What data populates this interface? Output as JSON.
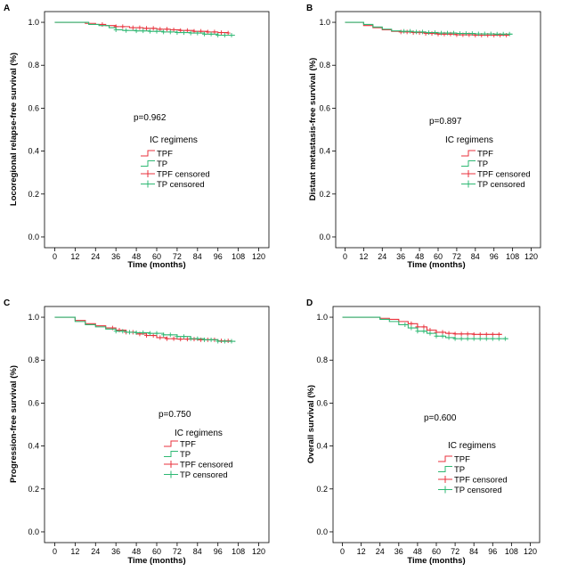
{
  "chart_data": [
    {
      "panel": "A",
      "type": "line",
      "title": "",
      "xlabel": "Time (months)",
      "ylabel": "Locoregional relapse-free survival (%)",
      "xticks": [
        "0",
        "12",
        "24",
        "36",
        "48",
        "60",
        "72",
        "84",
        "96",
        "108",
        "120"
      ],
      "yticks": [
        "0.0",
        "0.2",
        "0.4",
        "0.6",
        "0.8",
        "1.0"
      ],
      "xlim": [
        -6,
        126
      ],
      "ylim": [
        -0.05,
        1.05
      ],
      "pvalue": "p=0.962",
      "legend_title": "IC regimens",
      "legend": [
        "TPF",
        "TP",
        "TPF censored",
        "TP censored"
      ],
      "series": [
        {
          "name": "TPF",
          "color": "#e8323c",
          "x": [
            0,
            10,
            18,
            24,
            30,
            36,
            44,
            52,
            60,
            68,
            74,
            82,
            90,
            96,
            102
          ],
          "y": [
            1.0,
            1.0,
            0.995,
            0.99,
            0.985,
            0.98,
            0.975,
            0.972,
            0.968,
            0.965,
            0.962,
            0.958,
            0.955,
            0.952,
            0.95
          ],
          "censored_x": [
            28,
            36,
            40,
            46,
            50,
            54,
            58,
            62,
            66,
            70,
            74,
            78,
            82,
            86,
            90,
            94,
            98,
            102
          ]
        },
        {
          "name": "TP",
          "color": "#2eb873",
          "x": [
            0,
            12,
            20,
            26,
            32,
            36,
            40,
            48,
            56,
            64,
            72,
            80,
            88,
            96,
            106
          ],
          "y": [
            1.0,
            1.0,
            0.99,
            0.985,
            0.975,
            0.965,
            0.962,
            0.96,
            0.958,
            0.955,
            0.952,
            0.95,
            0.945,
            0.94,
            0.94
          ],
          "censored_x": [
            36,
            42,
            48,
            52,
            56,
            60,
            64,
            68,
            72,
            76,
            80,
            84,
            88,
            92,
            96,
            100,
            104
          ]
        }
      ]
    },
    {
      "panel": "B",
      "type": "line",
      "title": "",
      "xlabel": "Time (months)",
      "ylabel": "Distant metastasis-free survival (%)",
      "xticks": [
        "0",
        "12",
        "24",
        "36",
        "48",
        "60",
        "72",
        "84",
        "96",
        "108",
        "120"
      ],
      "yticks": [
        "0.0",
        "0.2",
        "0.4",
        "0.6",
        "0.8",
        "1.0"
      ],
      "xlim": [
        -6,
        126
      ],
      "ylim": [
        -0.05,
        1.05
      ],
      "pvalue": "p=0.897",
      "legend_title": "IC regimens",
      "legend": [
        "TPF",
        "TP",
        "TPF censored",
        "TP censored"
      ],
      "series": [
        {
          "name": "TPF",
          "color": "#e8323c",
          "x": [
            0,
            6,
            12,
            18,
            24,
            30,
            36,
            44,
            52,
            60,
            72,
            84,
            96,
            106
          ],
          "y": [
            1.0,
            1.0,
            0.985,
            0.975,
            0.965,
            0.958,
            0.955,
            0.952,
            0.948,
            0.945,
            0.942,
            0.94,
            0.94,
            0.94
          ],
          "censored_x": [
            36,
            40,
            44,
            48,
            52,
            56,
            60,
            64,
            68,
            72,
            76,
            80,
            84,
            88,
            92,
            96,
            100,
            104
          ]
        },
        {
          "name": "TP",
          "color": "#2eb873",
          "x": [
            0,
            6,
            12,
            18,
            24,
            30,
            36,
            44,
            52,
            60,
            72,
            84,
            96,
            108
          ],
          "y": [
            1.0,
            1.0,
            0.99,
            0.978,
            0.968,
            0.96,
            0.958,
            0.955,
            0.952,
            0.95,
            0.948,
            0.946,
            0.945,
            0.945
          ],
          "censored_x": [
            38,
            42,
            46,
            50,
            54,
            58,
            62,
            66,
            70,
            74,
            78,
            82,
            86,
            90,
            94,
            98,
            102,
            106
          ]
        }
      ]
    },
    {
      "panel": "C",
      "type": "line",
      "title": "",
      "xlabel": "Time (months)",
      "ylabel": "Progression-free survival (%)",
      "xticks": [
        "0",
        "12",
        "24",
        "36",
        "48",
        "60",
        "72",
        "84",
        "96",
        "108",
        "120"
      ],
      "yticks": [
        "0.0",
        "0.2",
        "0.4",
        "0.6",
        "0.8",
        "1.0"
      ],
      "xlim": [
        -6,
        126
      ],
      "ylim": [
        -0.05,
        1.05
      ],
      "pvalue": "p=0.750",
      "legend_title": "IC regimens",
      "legend": [
        "TPF",
        "TP",
        "TPF censored",
        "TP censored"
      ],
      "series": [
        {
          "name": "TPF",
          "color": "#e8323c",
          "x": [
            0,
            6,
            12,
            18,
            24,
            30,
            36,
            42,
            48,
            54,
            60,
            66,
            72,
            84,
            96,
            104
          ],
          "y": [
            1.0,
            1.0,
            0.985,
            0.97,
            0.96,
            0.95,
            0.94,
            0.93,
            0.922,
            0.915,
            0.905,
            0.9,
            0.898,
            0.895,
            0.89,
            0.885
          ],
          "censored_x": [
            34,
            38,
            42,
            46,
            50,
            54,
            58,
            62,
            66,
            70,
            74,
            78,
            82,
            86,
            90,
            94,
            98,
            102
          ]
        },
        {
          "name": "TP",
          "color": "#2eb873",
          "x": [
            0,
            6,
            12,
            18,
            24,
            30,
            36,
            42,
            48,
            56,
            64,
            72,
            80,
            88,
            96,
            106
          ],
          "y": [
            1.0,
            1.0,
            0.98,
            0.965,
            0.955,
            0.945,
            0.935,
            0.93,
            0.928,
            0.925,
            0.918,
            0.91,
            0.9,
            0.895,
            0.888,
            0.885
          ],
          "censored_x": [
            36,
            40,
            44,
            48,
            52,
            56,
            60,
            64,
            68,
            72,
            76,
            80,
            84,
            88,
            92,
            96,
            100,
            104
          ]
        }
      ]
    },
    {
      "panel": "D",
      "type": "line",
      "title": "",
      "xlabel": "Time (months)",
      "ylabel": "Overall survival (%)",
      "xticks": [
        "0",
        "12",
        "24",
        "36",
        "48",
        "60",
        "72",
        "84",
        "96",
        "108",
        "120"
      ],
      "yticks": [
        "0.0",
        "0.2",
        "0.4",
        "0.6",
        "0.8",
        "1.0"
      ],
      "xlim": [
        -6,
        126
      ],
      "ylim": [
        -0.05,
        1.05
      ],
      "pvalue": "p=0.600",
      "legend_title": "IC regimens",
      "legend": [
        "TPF",
        "TP",
        "TPF censored",
        "TP censored"
      ],
      "series": [
        {
          "name": "TPF",
          "color": "#e8323c",
          "x": [
            0,
            12,
            24,
            30,
            36,
            42,
            48,
            54,
            60,
            66,
            72,
            84,
            96,
            102
          ],
          "y": [
            1.0,
            1.0,
            0.995,
            0.99,
            0.98,
            0.97,
            0.955,
            0.94,
            0.93,
            0.925,
            0.922,
            0.92,
            0.92,
            0.92
          ],
          "censored_x": [
            44,
            48,
            52,
            56,
            60,
            64,
            68,
            72,
            76,
            80,
            84,
            88,
            92,
            96,
            100
          ]
        },
        {
          "name": "TP",
          "color": "#2eb873",
          "x": [
            0,
            12,
            24,
            30,
            36,
            42,
            48,
            54,
            60,
            66,
            72,
            84,
            96,
            106
          ],
          "y": [
            1.0,
            1.0,
            0.99,
            0.98,
            0.965,
            0.95,
            0.935,
            0.925,
            0.912,
            0.905,
            0.9,
            0.9,
            0.9,
            0.9
          ],
          "censored_x": [
            40,
            44,
            48,
            52,
            56,
            60,
            64,
            68,
            72,
            76,
            80,
            84,
            88,
            92,
            96,
            100,
            104
          ]
        }
      ]
    }
  ]
}
